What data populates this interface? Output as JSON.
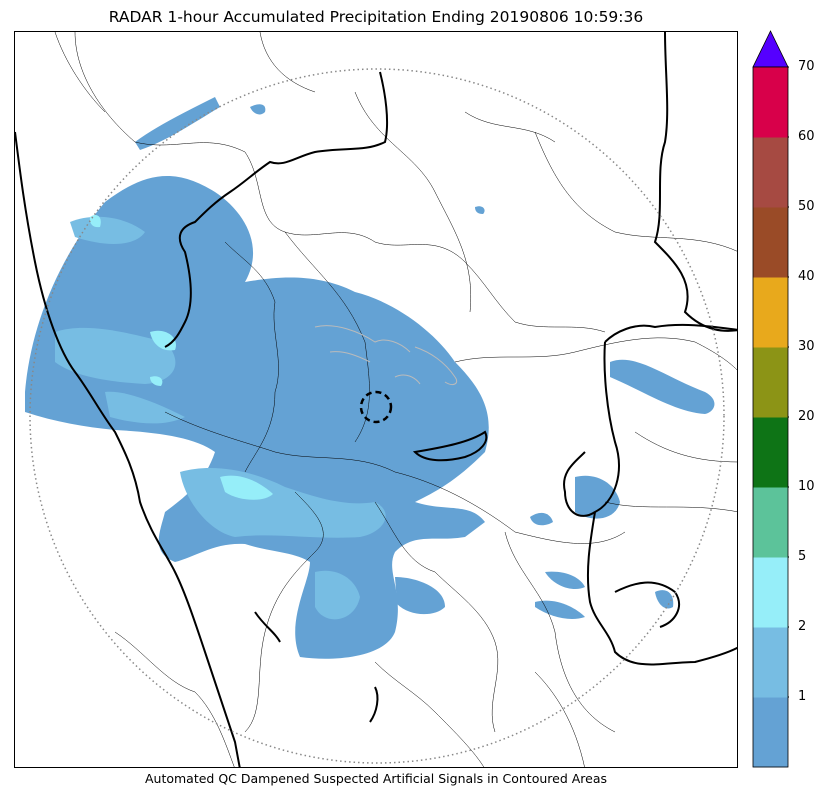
{
  "title": "RADAR 1-hour Accumulated Precipitation Ending 20190806 10:59:36",
  "caption": "Automated QC Dampened Suspected Artificial Signals in Contoured Areas",
  "colorbar": {
    "levels": [
      "1",
      "2",
      "5",
      "10",
      "20",
      "30",
      "40",
      "50",
      "60",
      "70"
    ],
    "colors": [
      "#64a2d4",
      "#77bde3",
      "#96eef9",
      "#5cc39a",
      "#0e7416",
      "#8c9416",
      "#e8a91c",
      "#9a4b27",
      "#a64a42",
      "#d8004a"
    ],
    "extend_color": "#5500ff"
  },
  "map_colors": {
    "light_rain": "#64a2d4",
    "moderate_rain": "#77bde3",
    "heavy_rain": "#96eef9",
    "range_ring": "#888888",
    "borders": "#000000"
  }
}
